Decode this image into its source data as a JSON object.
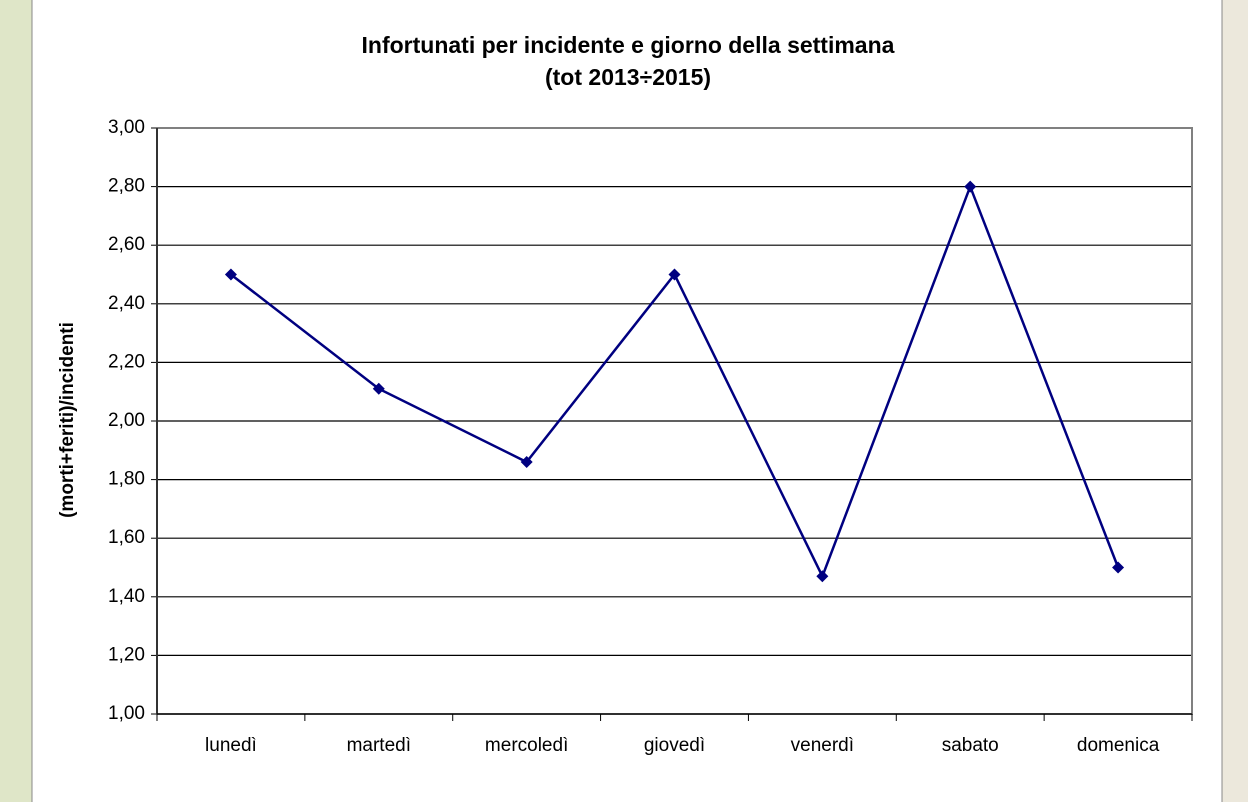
{
  "chart_data": {
    "type": "line",
    "title": "Infortunati per incidente e giorno della settimana",
    "subtitle": "(tot 2013÷2015)",
    "y_label": "(morti+feriti)/incidenti",
    "categories": [
      "lunedì",
      "martedì",
      "mercoledì",
      "giovedì",
      "venerdì",
      "sabato",
      "domenica"
    ],
    "values": [
      2.5,
      2.11,
      1.86,
      2.5,
      1.47,
      2.8,
      1.5
    ],
    "color": "#000080",
    "ylim": [
      1,
      3
    ],
    "yticks": [
      {
        "value": 1,
        "label": "1,00"
      },
      {
        "value": 1.2,
        "label": "1,20"
      },
      {
        "value": 1.4,
        "label": "1,40"
      },
      {
        "value": 1.6,
        "label": "1,60"
      },
      {
        "value": 1.8,
        "label": "1,80"
      },
      {
        "value": 2,
        "label": "2,00"
      },
      {
        "value": 2.2,
        "label": "2,20"
      },
      {
        "value": 2.4,
        "label": "2,40"
      },
      {
        "value": 2.6,
        "label": "2,60"
      },
      {
        "value": 2.8,
        "label": "2,80"
      },
      {
        "value": 3,
        "label": "3,00"
      }
    ],
    "grid": true
  }
}
